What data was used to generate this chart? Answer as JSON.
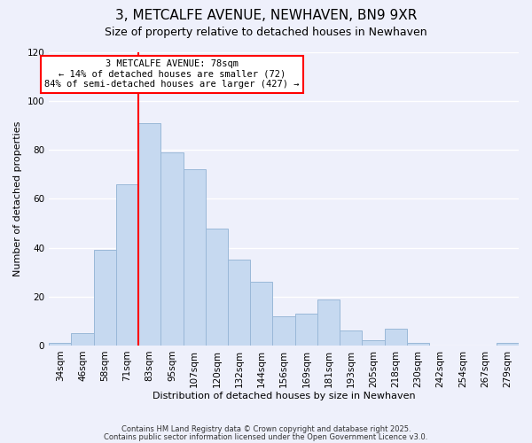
{
  "title": "3, METCALFE AVENUE, NEWHAVEN, BN9 9XR",
  "subtitle": "Size of property relative to detached houses in Newhaven",
  "xlabel": "Distribution of detached houses by size in Newhaven",
  "ylabel": "Number of detached properties",
  "bar_labels": [
    "34sqm",
    "46sqm",
    "58sqm",
    "71sqm",
    "83sqm",
    "95sqm",
    "107sqm",
    "120sqm",
    "132sqm",
    "144sqm",
    "156sqm",
    "169sqm",
    "181sqm",
    "193sqm",
    "205sqm",
    "218sqm",
    "230sqm",
    "242sqm",
    "254sqm",
    "267sqm",
    "279sqm"
  ],
  "bar_values": [
    1,
    5,
    39,
    66,
    91,
    79,
    72,
    48,
    35,
    26,
    12,
    13,
    19,
    6,
    2,
    7,
    1,
    0,
    0,
    0,
    1
  ],
  "bar_color": "#c6d9f0",
  "bar_edge_color": "#9ab8d8",
  "ylim": [
    0,
    120
  ],
  "yticks": [
    0,
    20,
    40,
    60,
    80,
    100,
    120
  ],
  "property_line_index": 4,
  "annotation_title": "3 METCALFE AVENUE: 78sqm",
  "annotation_line1": "← 14% of detached houses are smaller (72)",
  "annotation_line2": "84% of semi-detached houses are larger (427) →",
  "footnote1": "Contains HM Land Registry data © Crown copyright and database right 2025.",
  "footnote2": "Contains public sector information licensed under the Open Government Licence v3.0.",
  "background_color": "#eef0fb",
  "grid_color": "#ffffff",
  "title_fontsize": 11,
  "subtitle_fontsize": 9,
  "axis_label_fontsize": 8,
  "tick_fontsize": 7.5
}
